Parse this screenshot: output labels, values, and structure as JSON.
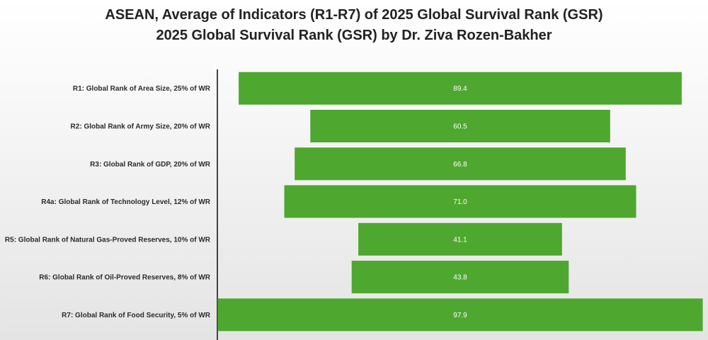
{
  "chart_data": {
    "type": "bar",
    "orientation": "horizontal",
    "style": "funnel-centered",
    "title": "ASEAN, Average of Indicators (R1-R7) of 2025 Global Survival Rank (GSR)",
    "subtitle": "2025 Global Survival Rank (GSR) by Dr. Ziva Rozen-Bakher",
    "categories": [
      "R1: Global Rank of Area Size, 25% of WR",
      "R2: Global Rank of Army Size, 20% of WR",
      "R3: Global Rank of GDP, 20% of WR",
      "R4a: Global Rank of Technology Level, 12% of WR",
      "R5: Global Rank of Natural Gas-Proved Reserves, 10% of WR",
      "R6: Global Rank of Oil-Proved Reserves, 8% of WR",
      "R7: Global Rank of Food Security, 5% of WR"
    ],
    "values": [
      89.4,
      60.5,
      66.8,
      71.0,
      41.1,
      43.8,
      97.9
    ],
    "value_labels": [
      "89.4",
      "60.5",
      "66.8",
      "71.0",
      "41.1",
      "43.8",
      "97.9"
    ],
    "xlim": [
      0,
      100
    ],
    "bar_color": "#4ea72e",
    "value_label_color": "#ffffff",
    "grid": false,
    "legend": "none"
  }
}
